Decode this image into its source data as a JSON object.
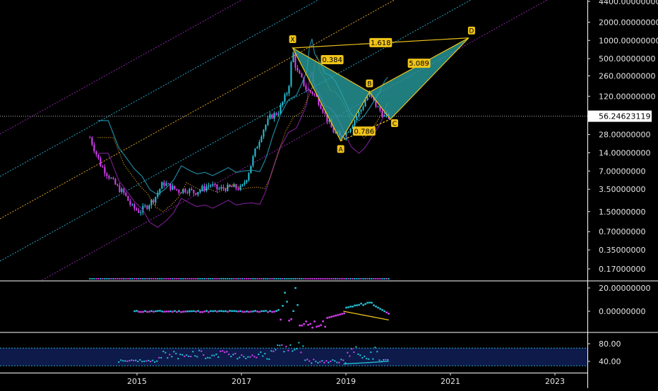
{
  "chart_data": {
    "type": "line",
    "title": "",
    "scale": "log",
    "price_axis": {
      "ticks": [
        {
          "value": 4400,
          "label": "4400.00000000"
        },
        {
          "value": 2000,
          "label": "2000.00000000"
        },
        {
          "value": 1000,
          "label": "1000.00000000"
        },
        {
          "value": 500,
          "label": "500.00000000"
        },
        {
          "value": 260,
          "label": "260.00000000"
        },
        {
          "value": 120,
          "label": "120.00000000"
        },
        {
          "value": 28,
          "label": "28.00000000"
        },
        {
          "value": 14,
          "label": "14.00000000"
        },
        {
          "value": 7,
          "label": "7.00000000"
        },
        {
          "value": 3.5,
          "label": "3.50000000"
        },
        {
          "value": 1.5,
          "label": "1.50000000"
        },
        {
          "value": 0.7,
          "label": "0.70000000"
        },
        {
          "value": 0.35,
          "label": "0.35000000"
        },
        {
          "value": 0.17,
          "label": "0.17000000"
        }
      ],
      "current_price": {
        "value": 56.24623119,
        "label": "56.24623119"
      }
    },
    "time_axis": {
      "ticks": [
        {
          "value": 2015,
          "label": "2015"
        },
        {
          "value": 2017,
          "label": "2017"
        },
        {
          "value": 2019,
          "label": "2019"
        },
        {
          "value": 2021,
          "label": "2021"
        },
        {
          "value": 2023,
          "label": "2023"
        }
      ]
    },
    "price_series": [
      {
        "t": 2014.1,
        "p": 25
      },
      {
        "t": 2014.2,
        "p": 15
      },
      {
        "t": 2014.3,
        "p": 9
      },
      {
        "t": 2014.45,
        "p": 6
      },
      {
        "t": 2014.6,
        "p": 4
      },
      {
        "t": 2014.75,
        "p": 3
      },
      {
        "t": 2014.9,
        "p": 1.8
      },
      {
        "t": 2015.05,
        "p": 1.5
      },
      {
        "t": 2015.2,
        "p": 1.9
      },
      {
        "t": 2015.35,
        "p": 2.6
      },
      {
        "t": 2015.5,
        "p": 4.5
      },
      {
        "t": 2015.65,
        "p": 3.8
      },
      {
        "t": 2015.8,
        "p": 3.3
      },
      {
        "t": 2015.95,
        "p": 3.5
      },
      {
        "t": 2016.1,
        "p": 3.1
      },
      {
        "t": 2016.25,
        "p": 3.6
      },
      {
        "t": 2016.4,
        "p": 4.2
      },
      {
        "t": 2016.55,
        "p": 3.5
      },
      {
        "t": 2016.7,
        "p": 3.7
      },
      {
        "t": 2016.85,
        "p": 3.8
      },
      {
        "t": 2017.0,
        "p": 3.6
      },
      {
        "t": 2017.12,
        "p": 6
      },
      {
        "t": 2017.25,
        "p": 14
      },
      {
        "t": 2017.4,
        "p": 32
      },
      {
        "t": 2017.55,
        "p": 55
      },
      {
        "t": 2017.7,
        "p": 65
      },
      {
        "t": 2017.8,
        "p": 100
      },
      {
        "t": 2017.9,
        "p": 160
      },
      {
        "t": 2017.98,
        "p": 700
      },
      {
        "t": 2018.05,
        "p": 320
      },
      {
        "t": 2018.15,
        "p": 230
      },
      {
        "t": 2018.25,
        "p": 150
      },
      {
        "t": 2018.35,
        "p": 140
      },
      {
        "t": 2018.45,
        "p": 110
      },
      {
        "t": 2018.55,
        "p": 75
      },
      {
        "t": 2018.65,
        "p": 48
      },
      {
        "t": 2018.75,
        "p": 32
      },
      {
        "t": 2018.9,
        "p": 25
      },
      {
        "t": 2019.0,
        "p": 30
      },
      {
        "t": 2019.1,
        "p": 40
      },
      {
        "t": 2019.2,
        "p": 55
      },
      {
        "t": 2019.3,
        "p": 75
      },
      {
        "t": 2019.38,
        "p": 110
      },
      {
        "t": 2019.45,
        "p": 130
      },
      {
        "t": 2019.55,
        "p": 90
      },
      {
        "t": 2019.65,
        "p": 70
      },
      {
        "t": 2019.75,
        "p": 55
      },
      {
        "t": 2019.82,
        "p": 56.2
      }
    ],
    "pattern": {
      "points": [
        {
          "label": "X",
          "t": 2017.98,
          "p": 750
        },
        {
          "label": "A",
          "t": 2018.9,
          "p": 22
        },
        {
          "label": "B",
          "t": 2019.45,
          "p": 140
        },
        {
          "label": "C",
          "t": 2019.85,
          "p": 50
        },
        {
          "label": "D",
          "t": 2021.35,
          "p": 1100
        }
      ],
      "ratios": [
        {
          "value": "1.618",
          "between": [
            "X",
            "D"
          ]
        },
        {
          "value": "0.384",
          "between": [
            "X",
            "B"
          ]
        },
        {
          "value": "5.089",
          "between": [
            "B",
            "D"
          ]
        },
        {
          "value": "0.786",
          "between": [
            "A",
            "C"
          ]
        }
      ]
    },
    "oscillator_1": {
      "ticks": [
        {
          "value": 20,
          "label": "20.00000000"
        },
        {
          "value": 0,
          "label": "0.00000000"
        }
      ]
    },
    "oscillator_2": {
      "ticks": [
        {
          "value": 80,
          "label": "80.00"
        },
        {
          "value": 40,
          "label": "40.00"
        }
      ],
      "band_top": 70,
      "band_bottom": 30
    },
    "colors": {
      "background": "#000000",
      "axis_text": "#e6e6e6",
      "grid_line": "#ffffff",
      "pattern_fill": "#2aa7a7",
      "pattern_stroke": "#f0c419",
      "label_fill": "#f0c419",
      "label_text": "#000000",
      "candle_up": "#26c6da",
      "candle_down": "#e040fb",
      "channel_purple": "#8e24aa",
      "channel_cyan": "#26a6c6",
      "channel_orange": "#e0a526",
      "current_price_line": "#b0b0b0",
      "band_fill": "#0d1a4a",
      "band_line": "#26a6c6"
    }
  }
}
